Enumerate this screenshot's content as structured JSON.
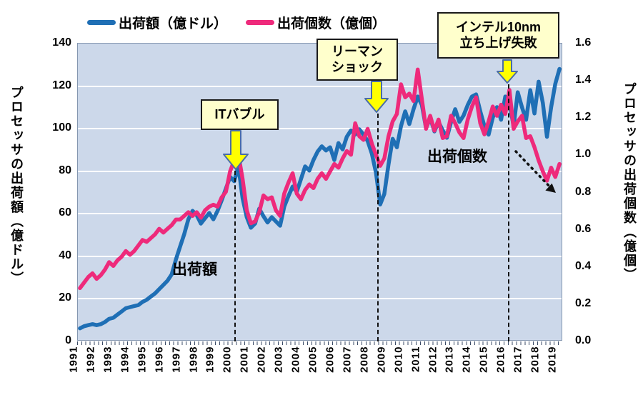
{
  "legend": {
    "items": [
      {
        "label": "出荷額（億ドル）",
        "color": "#1f6fb5"
      },
      {
        "label": "出荷個数（億個）",
        "color": "#ee2a7b"
      }
    ]
  },
  "left_axis": {
    "title": "プロセッサの出荷額（億ドル）",
    "ticks": [
      "0",
      "20",
      "40",
      "60",
      "80",
      "100",
      "120",
      "140"
    ]
  },
  "right_axis": {
    "title": "プロセッサの出荷個数（億個）",
    "ticks": [
      "0.0",
      "0.2",
      "0.4",
      "0.6",
      "0.8",
      "1.0",
      "1.2",
      "1.4",
      "1.6"
    ]
  },
  "annotations": {
    "it_bubble": {
      "line1": "ITバブル"
    },
    "lehman": {
      "line1": "リーマン",
      "line2": "ショック"
    },
    "intel": {
      "line1": "インテル10nm",
      "line2": "立ち上げ失敗"
    }
  },
  "inplot_labels": {
    "value_series": "出荷額",
    "unit_series": "出荷個数"
  },
  "colors": {
    "plot_bg": "#ccd8ea",
    "gridline": "#ffffff",
    "value_line": "#1f6fb5",
    "unit_line": "#ee2a7b",
    "callout_bg": "#ffffcc",
    "arrow_fill": "#ffff00",
    "arrow_stroke": "#4a6da7"
  },
  "chart_data": {
    "type": "line",
    "x_unit": "quarter",
    "years": [
      "1991",
      "1992",
      "1993",
      "1994",
      "1995",
      "1996",
      "1997",
      "1998",
      "1999",
      "2000",
      "2001",
      "2002",
      "2003",
      "2004",
      "2005",
      "2006",
      "2007",
      "2008",
      "2009",
      "2010",
      "2011",
      "2012",
      "2013",
      "2014",
      "2015",
      "2016",
      "2017",
      "2018",
      "2019"
    ],
    "left_ylim": [
      0,
      140
    ],
    "right_ylim": [
      0.0,
      1.6
    ],
    "grid": "horizontal-white",
    "legend_position": "top",
    "series": [
      {
        "name": "出荷額（億ドル）",
        "axis": "left",
        "color": "#1f6fb5",
        "values": [
          5.5,
          6.5,
          7,
          7.5,
          7,
          7.5,
          8.5,
          10,
          10.5,
          12,
          13.5,
          15,
          15.5,
          16,
          16.5,
          18,
          19,
          20.5,
          22,
          24,
          26,
          28,
          31,
          38,
          44,
          50,
          57,
          61,
          59,
          55,
          57.5,
          60,
          57,
          61,
          66,
          71.5,
          77,
          75,
          82,
          67,
          58,
          53,
          55,
          62,
          58.5,
          55.5,
          58,
          56,
          54,
          63,
          68,
          72.5,
          70,
          76,
          82,
          80,
          85,
          89,
          91.5,
          89.5,
          91,
          85,
          93,
          90,
          96,
          99,
          97,
          99.5,
          97,
          94,
          88,
          79,
          64,
          69,
          83,
          95,
          91,
          101,
          108,
          102,
          109,
          115,
          111,
          100,
          105,
          98.5,
          103,
          99,
          95.5,
          103,
          109,
          103,
          106,
          111,
          115,
          116,
          108,
          101,
          97,
          105,
          110,
          104,
          115,
          112,
          101,
          117,
          110,
          104,
          118,
          107,
          122,
          112,
          96,
          110,
          121,
          128
        ]
      },
      {
        "name": "出荷個数（億個）",
        "axis": "right",
        "color": "#ee2a7b",
        "values": [
          0.28,
          0.31,
          0.34,
          0.36,
          0.33,
          0.35,
          0.38,
          0.42,
          0.4,
          0.43,
          0.45,
          0.48,
          0.46,
          0.48,
          0.51,
          0.54,
          0.53,
          0.55,
          0.57,
          0.6,
          0.58,
          0.6,
          0.62,
          0.65,
          0.65,
          0.67,
          0.69,
          0.67,
          0.69,
          0.66,
          0.7,
          0.72,
          0.73,
          0.72,
          0.77,
          0.8,
          0.91,
          0.97,
          1.0,
          0.87,
          0.7,
          0.63,
          0.64,
          0.69,
          0.78,
          0.76,
          0.77,
          0.7,
          0.67,
          0.79,
          0.85,
          0.9,
          0.79,
          0.76,
          0.81,
          0.84,
          0.82,
          0.87,
          0.9,
          0.87,
          0.91,
          0.95,
          0.93,
          0.98,
          1.02,
          1.0,
          1.17,
          1.1,
          1.08,
          1.14,
          1.06,
          1.0,
          0.94,
          0.98,
          1.1,
          1.18,
          1.22,
          1.38,
          1.31,
          1.33,
          1.29,
          1.46,
          1.3,
          1.14,
          1.21,
          1.13,
          1.19,
          1.09,
          1.1,
          1.21,
          1.17,
          1.12,
          1.09,
          1.19,
          1.26,
          1.31,
          1.17,
          1.11,
          1.18,
          1.26,
          1.21,
          1.27,
          1.22,
          1.35,
          1.14,
          1.18,
          1.21,
          1.09,
          1.1,
          1.04,
          0.97,
          0.91,
          0.86,
          0.93,
          0.88,
          0.95
        ]
      }
    ],
    "event_lines_x_quarter_index": [
      37.1,
      71.3,
      102.6
    ]
  }
}
